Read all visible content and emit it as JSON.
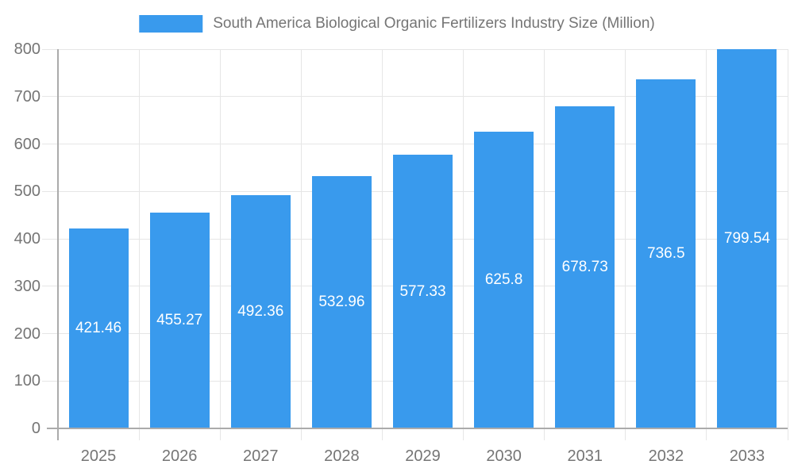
{
  "chart_data": {
    "type": "bar",
    "title": "South America Biological Organic Fertilizers Industry Size (Million)",
    "categories": [
      "2025",
      "2026",
      "2027",
      "2028",
      "2029",
      "2030",
      "2031",
      "2032",
      "2033"
    ],
    "values": [
      421.46,
      455.27,
      492.36,
      532.96,
      577.33,
      625.8,
      678.73,
      736.5,
      799.54
    ],
    "value_labels": [
      "421.46",
      "455.27",
      "492.36",
      "532.96",
      "577.33",
      "625.8",
      "678.73",
      "736.5",
      "799.54"
    ],
    "xlabel": "",
    "ylabel": "",
    "ylim": [
      0,
      800
    ],
    "ytick_interval": 100,
    "ytick_labels": [
      "0",
      "100",
      "200",
      "300",
      "400",
      "500",
      "600",
      "700",
      "800"
    ],
    "grid": true,
    "legend_position": "top",
    "colors": {
      "bar": "#399AED",
      "value_label": "#ffffff",
      "axis_text": "#757575",
      "axis_line": "#ababab",
      "grid_line": "#e6e6e6",
      "background": "#ffffff"
    }
  }
}
